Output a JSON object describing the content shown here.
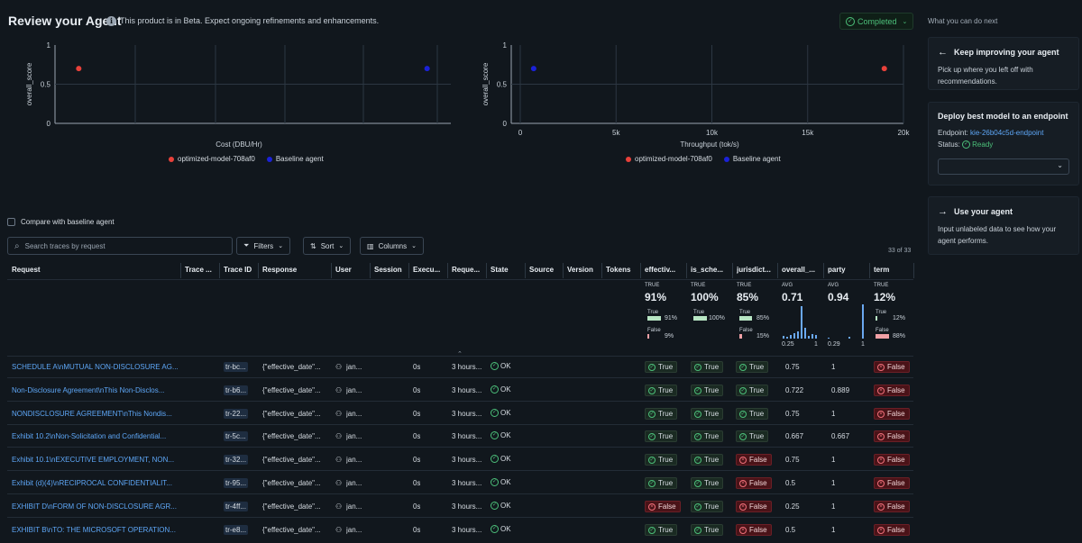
{
  "header": {
    "title": "Review your Agent",
    "beta_notice": "This product is in Beta. Expect ongoing refinements and enhancements.",
    "status": "Completed"
  },
  "sidebar": {
    "heading": "What you can do next",
    "cards": [
      {
        "title": "Keep improving your agent",
        "body": "Pick up where you left off with recommendations."
      },
      {
        "title": "Deploy best model to an endpoint",
        "endpoint_label": "Endpoint:",
        "endpoint_value": "kie-26b04c5d-endpoint",
        "status_label": "Status:",
        "status_value": "Ready"
      },
      {
        "title": "Use your agent",
        "body": "Input unlabeled data to see how your agent performs."
      }
    ]
  },
  "colors": {
    "optimized": "#e8413a",
    "baseline": "#1b22d8",
    "accent": "#5ea7f7",
    "ok": "#4cc07a",
    "false_bg": "#4a1318"
  },
  "chart_data": [
    {
      "type": "scatter",
      "xlabel": "Cost (DBU/Hr)",
      "ylabel": "overall_score",
      "ylim": [
        0,
        1
      ],
      "yticks": [
        "0",
        "0.5",
        "1"
      ],
      "legend_position": "bottom",
      "series": [
        {
          "name": "optimized-model-708af0",
          "color": "#e8413a",
          "points": [
            {
              "x": 0.06,
              "y": 0.7
            }
          ]
        },
        {
          "name": "Baseline agent",
          "color": "#1b22d8",
          "points": [
            {
              "x": 0.94,
              "y": 0.7
            }
          ]
        }
      ]
    },
    {
      "type": "scatter",
      "xlabel": "Throughput (tok/s)",
      "ylabel": "overall_score",
      "xlim": [
        0,
        20000
      ],
      "ylim": [
        0,
        1
      ],
      "xticks": [
        "0",
        "5k",
        "10k",
        "15k",
        "20k"
      ],
      "yticks": [
        "0",
        "0.5",
        "1"
      ],
      "legend_position": "bottom",
      "series": [
        {
          "name": "optimized-model-708af0",
          "color": "#e8413a",
          "points": [
            {
              "x": 19000,
              "y": 0.7
            }
          ]
        },
        {
          "name": "Baseline agent",
          "color": "#1b22d8",
          "points": [
            {
              "x": 700,
              "y": 0.7
            }
          ]
        }
      ]
    }
  ],
  "toolbar": {
    "compare_label": "Compare with baseline agent",
    "search_placeholder": "Search traces by request",
    "filters": "Filters",
    "sort": "Sort",
    "columns": "Columns",
    "count": "33 of 33"
  },
  "table": {
    "columns": [
      "Request",
      "Trace ...",
      "Trace ID",
      "Response",
      "User",
      "Session",
      "Execu...",
      "Reque...",
      "State",
      "Source",
      "Version",
      "Tokens",
      "effectiv...",
      "is_sche...",
      "jurisdict...",
      "overall_...",
      "party",
      "term"
    ],
    "summaries": {
      "effective": {
        "label": "TRUE",
        "value": "91%",
        "true_pct": "91%",
        "false_pct": "9%"
      },
      "is_sche": {
        "label": "TRUE",
        "value": "100%",
        "true_pct": "100%"
      },
      "jurisdict": {
        "label": "TRUE",
        "value": "85%",
        "true_pct": "85%",
        "false_pct": "15%"
      },
      "overall": {
        "label": "AVG",
        "value": "0.71",
        "min": "0.25",
        "max": "1"
      },
      "party": {
        "label": "AVG",
        "value": "0.94",
        "min": "0.29",
        "max": "1"
      },
      "term": {
        "label": "TRUE",
        "value": "12%",
        "true_pct": "12%",
        "false_pct": "88%"
      },
      "true_word": "True",
      "false_word": "False"
    },
    "rows": [
      {
        "request": "SCHEDULE A\\nMUTUAL NON-DISCLOSURE AG...",
        "trace_id": "tr-bc...",
        "response": "{\"effective_date\"...",
        "user": "jan...",
        "exec": "0s",
        "req": "3 hours...",
        "state": "OK",
        "effective": "True",
        "is_sche": "True",
        "jurisdict": "True",
        "overall": "0.75",
        "party": "1",
        "term": "False"
      },
      {
        "request": "Non-Disclosure Agreement\\nThis Non-Disclos...",
        "trace_id": "tr-b6...",
        "response": "{\"effective_date\"...",
        "user": "jan...",
        "exec": "0s",
        "req": "3 hours...",
        "state": "OK",
        "effective": "True",
        "is_sche": "True",
        "jurisdict": "True",
        "overall": "0.722",
        "party": "0.889",
        "term": "False"
      },
      {
        "request": "NONDISCLOSURE AGREEMENT\\nThis Nondis...",
        "trace_id": "tr-22...",
        "response": "{\"effective_date\"...",
        "user": "jan...",
        "exec": "0s",
        "req": "3 hours...",
        "state": "OK",
        "effective": "True",
        "is_sche": "True",
        "jurisdict": "True",
        "overall": "0.75",
        "party": "1",
        "term": "False"
      },
      {
        "request": "Exhibit 10.2\\nNon-Solicitation and Confidential...",
        "trace_id": "tr-5c...",
        "response": "{\"effective_date\"...",
        "user": "jan...",
        "exec": "0s",
        "req": "3 hours...",
        "state": "OK",
        "effective": "True",
        "is_sche": "True",
        "jurisdict": "True",
        "overall": "0.667",
        "party": "0.667",
        "term": "False"
      },
      {
        "request": "Exhibit 10.1\\nEXECUTIVE EMPLOYMENT, NON...",
        "trace_id": "tr-32...",
        "response": "{\"effective_date\"...",
        "user": "jan...",
        "exec": "0s",
        "req": "3 hours...",
        "state": "OK",
        "effective": "True",
        "is_sche": "True",
        "jurisdict": "False",
        "overall": "0.75",
        "party": "1",
        "term": "False"
      },
      {
        "request": "Exhibit (d)(4)\\nRECIPROCAL CONFIDENTIALIT...",
        "trace_id": "tr-95...",
        "response": "{\"effective_date\"...",
        "user": "jan...",
        "exec": "0s",
        "req": "3 hours...",
        "state": "OK",
        "effective": "True",
        "is_sche": "True",
        "jurisdict": "False",
        "overall": "0.5",
        "party": "1",
        "term": "False"
      },
      {
        "request": "EXHIBIT D\\nFORM OF NON-DISCLOSURE AGR...",
        "trace_id": "tr-4ff...",
        "response": "{\"effective_date\"...",
        "user": "jan...",
        "exec": "0s",
        "req": "3 hours...",
        "state": "OK",
        "effective": "False",
        "is_sche": "True",
        "jurisdict": "False",
        "overall": "0.25",
        "party": "1",
        "term": "False"
      },
      {
        "request": "EXHIBIT B\\nTO: THE MICROSOFT OPERATION...",
        "trace_id": "tr-e8...",
        "response": "{\"effective_date\"...",
        "user": "jan...",
        "exec": "0s",
        "req": "3 hours...",
        "state": "OK",
        "effective": "True",
        "is_sche": "True",
        "jurisdict": "False",
        "overall": "0.5",
        "party": "1",
        "term": "False"
      }
    ]
  }
}
